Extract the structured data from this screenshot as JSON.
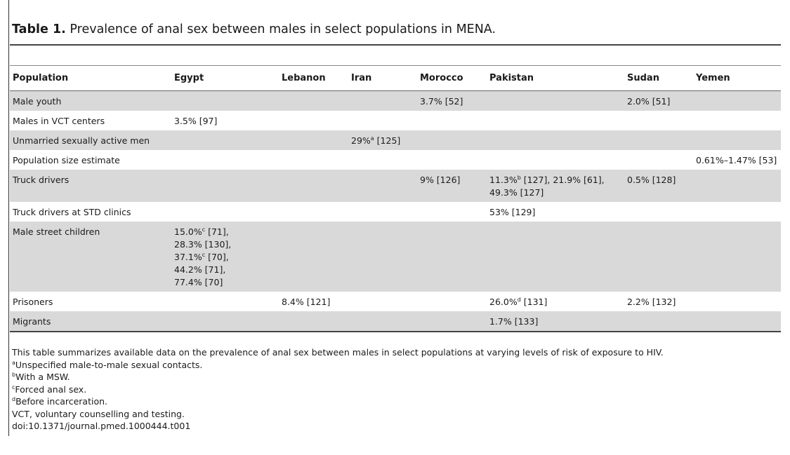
{
  "caption": {
    "label": "Table 1.",
    "text": "Prevalence of anal sex between males in select populations in MENA."
  },
  "table": {
    "headers": [
      "Population",
      "Egypt",
      "Lebanon",
      "Iran",
      "Morocco",
      "Pakistan",
      "Sudan",
      "Yemen"
    ],
    "rows": [
      {
        "population": "Male youth",
        "egypt": [],
        "lebanon": [],
        "iran": [],
        "morocco": [
          {
            "v": "3.7% [52]"
          }
        ],
        "pakistan": [],
        "sudan": [
          {
            "v": "2.0% [51]"
          }
        ],
        "yemen": []
      },
      {
        "population": "Males in VCT centers",
        "egypt": [
          {
            "v": "3.5% [97]"
          }
        ],
        "lebanon": [],
        "iran": [],
        "morocco": [],
        "pakistan": [],
        "sudan": [],
        "yemen": []
      },
      {
        "population": "Unmarried sexually active men",
        "egypt": [],
        "lebanon": [],
        "iran": [
          {
            "v": "29%",
            "sup": "a",
            "rest": " [125]"
          }
        ],
        "morocco": [],
        "pakistan": [],
        "sudan": [],
        "yemen": []
      },
      {
        "population": "Population size estimate",
        "egypt": [],
        "lebanon": [],
        "iran": [],
        "morocco": [],
        "pakistan": [],
        "sudan": [],
        "yemen": [
          {
            "v": "0.61%–1.47% [53]"
          }
        ]
      },
      {
        "population": "Truck drivers",
        "egypt": [],
        "lebanon": [],
        "iran": [],
        "morocco": [
          {
            "v": "9% [126]"
          }
        ],
        "pakistan": [
          {
            "v": "11.3%",
            "sup": "b",
            "rest": " [127], 21.9% [61],"
          },
          {
            "v": "49.3% [127]"
          }
        ],
        "sudan": [
          {
            "v": "0.5% [128]"
          }
        ],
        "yemen": []
      },
      {
        "population": "Truck drivers at STD clinics",
        "egypt": [],
        "lebanon": [],
        "iran": [],
        "morocco": [],
        "pakistan": [
          {
            "v": "53% [129]"
          }
        ],
        "sudan": [],
        "yemen": []
      },
      {
        "population": "Male street children",
        "egypt": [
          {
            "v": "15.0%",
            "sup": "c",
            "rest": " [71],"
          },
          {
            "v": "28.3% [130],"
          },
          {
            "v": "37.1%",
            "sup": "c",
            "rest": " [70],"
          },
          {
            "v": "44.2% [71],"
          },
          {
            "v": "77.4% [70]"
          }
        ],
        "lebanon": [],
        "iran": [],
        "morocco": [],
        "pakistan": [],
        "sudan": [],
        "yemen": []
      },
      {
        "population": "Prisoners",
        "egypt": [],
        "lebanon": [
          {
            "v": "8.4% [121]"
          }
        ],
        "iran": [],
        "morocco": [],
        "pakistan": [
          {
            "v": "26.0%",
            "sup": "d",
            "rest": " [131]"
          }
        ],
        "sudan": [
          {
            "v": "2.2% [132]"
          }
        ],
        "yemen": []
      },
      {
        "population": "Migrants",
        "egypt": [],
        "lebanon": [],
        "iran": [],
        "morocco": [],
        "pakistan": [
          {
            "v": "1.7% [133]"
          }
        ],
        "sudan": [],
        "yemen": []
      }
    ]
  },
  "footnotes": {
    "summary": "This table summarizes available data on the prevalence of anal sex between males in select populations at varying levels of risk of exposure to HIV.",
    "notes": [
      {
        "mark": "a",
        "text": "Unspecified male-to-male sexual contacts."
      },
      {
        "mark": "b",
        "text": "With a MSW."
      },
      {
        "mark": "c",
        "text": "Forced anal sex."
      },
      {
        "mark": "d",
        "text": "Before incarceration."
      }
    ],
    "abbrev": "VCT, voluntary counselling and testing.",
    "doi": "doi:10.1371/journal.pmed.1000444.t001"
  }
}
